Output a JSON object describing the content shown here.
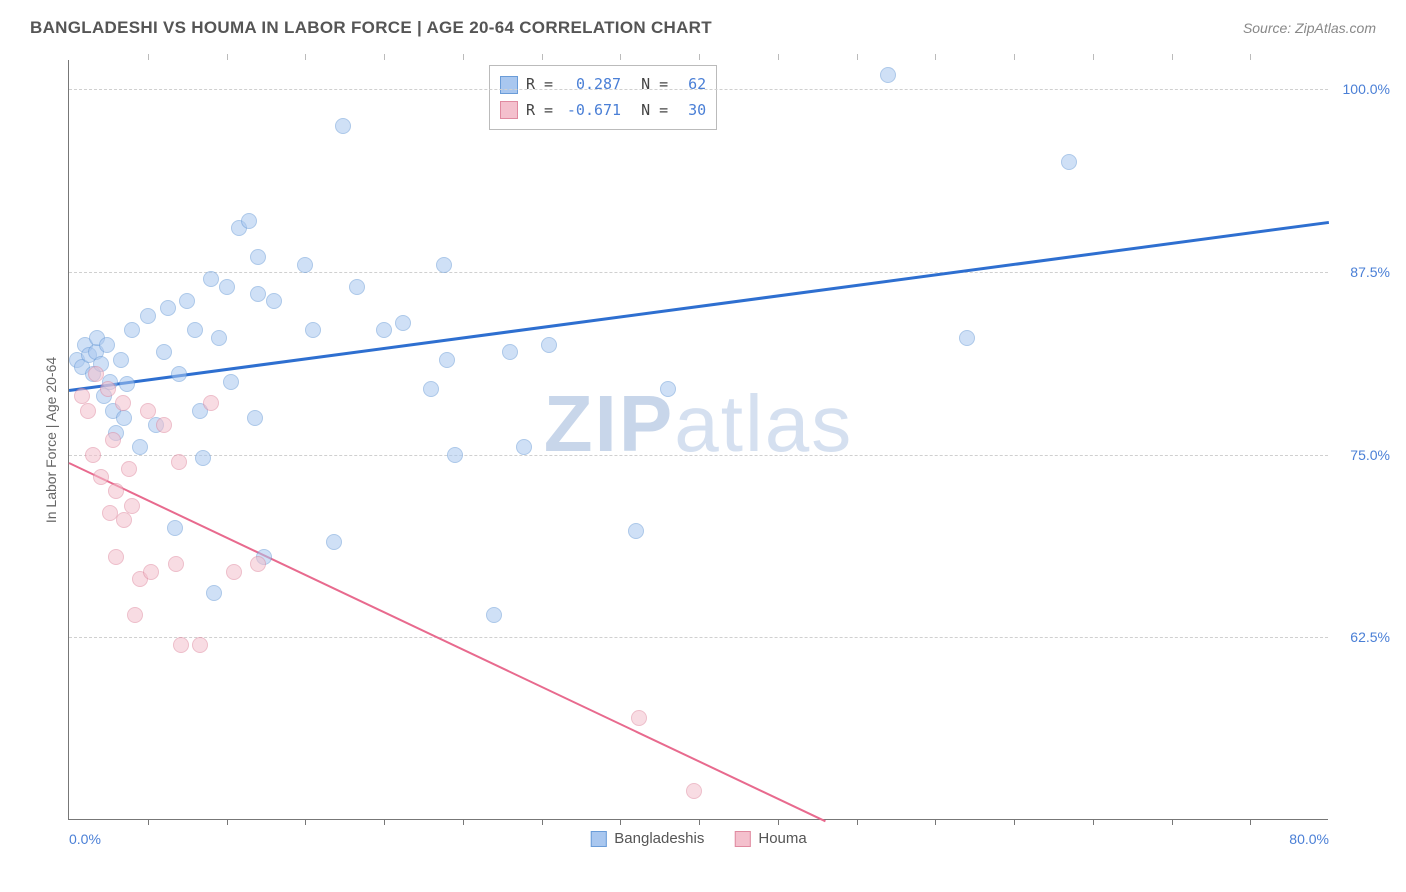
{
  "title": "BANGLADESHI VS HOUMA IN LABOR FORCE | AGE 20-64 CORRELATION CHART",
  "source_label": "Source: ",
  "source_value": "ZipAtlas.com",
  "y_axis_title": "In Labor Force | Age 20-64",
  "watermark_a": "ZIP",
  "watermark_b": "atlas",
  "chart": {
    "type": "scatter",
    "xlim": [
      0,
      80
    ],
    "ylim": [
      50,
      102
    ],
    "x_ticks_major": [
      0,
      80
    ],
    "x_ticks_minor": [
      5,
      10,
      15,
      20,
      25,
      30,
      35,
      40,
      45,
      50,
      55,
      60,
      65,
      70,
      75
    ],
    "y_ticks": [
      62.5,
      75.0,
      87.5,
      100.0
    ],
    "x_tick_labels": [
      "0.0%",
      "80.0%"
    ],
    "y_tick_labels": [
      "62.5%",
      "75.0%",
      "87.5%",
      "100.0%"
    ],
    "grid_color": "#d0d0d0",
    "axis_color": "#777777",
    "tick_label_color": "#4a7fd6",
    "background_color": "#ffffff",
    "marker_radius": 8,
    "marker_opacity": 0.55,
    "series": [
      {
        "name": "Bangladeshis",
        "fill": "#a9c7ef",
        "stroke": "#6a9cd8",
        "trend_color": "#2e6fd0",
        "trend_width": 2.5,
        "r_value": "0.287",
        "n_value": "62",
        "trend": {
          "x1": 0,
          "y1": 79.5,
          "x2": 80,
          "y2": 91.0
        },
        "points": [
          [
            0.5,
            81.5
          ],
          [
            0.8,
            81.0
          ],
          [
            1.0,
            82.5
          ],
          [
            1.3,
            81.8
          ],
          [
            1.5,
            80.5
          ],
          [
            1.7,
            82.0
          ],
          [
            1.8,
            83.0
          ],
          [
            2.0,
            81.2
          ],
          [
            2.2,
            79.0
          ],
          [
            2.4,
            82.5
          ],
          [
            2.6,
            80.0
          ],
          [
            2.8,
            78.0
          ],
          [
            3.0,
            76.5
          ],
          [
            3.3,
            81.5
          ],
          [
            3.5,
            77.5
          ],
          [
            3.7,
            79.8
          ],
          [
            4.0,
            83.5
          ],
          [
            4.5,
            75.5
          ],
          [
            5.0,
            84.5
          ],
          [
            5.5,
            77.0
          ],
          [
            6.0,
            82.0
          ],
          [
            6.3,
            85.0
          ],
          [
            6.7,
            70.0
          ],
          [
            7.0,
            80.5
          ],
          [
            7.5,
            85.5
          ],
          [
            8.0,
            83.5
          ],
          [
            8.3,
            78.0
          ],
          [
            8.5,
            74.8
          ],
          [
            9.0,
            87.0
          ],
          [
            9.2,
            65.5
          ],
          [
            9.5,
            83.0
          ],
          [
            10.0,
            86.5
          ],
          [
            10.3,
            80.0
          ],
          [
            10.8,
            90.5
          ],
          [
            11.4,
            91.0
          ],
          [
            11.8,
            77.5
          ],
          [
            12.0,
            86.0
          ],
          [
            12.0,
            88.5
          ],
          [
            12.4,
            68.0
          ],
          [
            13.0,
            85.5
          ],
          [
            15.0,
            88.0
          ],
          [
            15.5,
            83.5
          ],
          [
            16.8,
            69.0
          ],
          [
            17.4,
            97.5
          ],
          [
            18.3,
            86.5
          ],
          [
            20.0,
            83.5
          ],
          [
            21.2,
            84.0
          ],
          [
            23.0,
            79.5
          ],
          [
            23.8,
            88.0
          ],
          [
            24.0,
            81.5
          ],
          [
            24.5,
            75.0
          ],
          [
            27.0,
            64.0
          ],
          [
            28.0,
            82.0
          ],
          [
            28.9,
            75.5
          ],
          [
            30.5,
            82.5
          ],
          [
            36.0,
            69.8
          ],
          [
            38.0,
            79.5
          ],
          [
            52.0,
            101.0
          ],
          [
            57.0,
            83.0
          ],
          [
            63.5,
            95.0
          ]
        ]
      },
      {
        "name": "Houma",
        "fill": "#f4c0cd",
        "stroke": "#e08aa0",
        "trend_color": "#e86a8e",
        "trend_width": 2,
        "r_value": "-0.671",
        "n_value": "30",
        "trend": {
          "x1": 0,
          "y1": 74.5,
          "x2": 48,
          "y2": 50.0
        },
        "points": [
          [
            0.8,
            79.0
          ],
          [
            1.2,
            78.0
          ],
          [
            1.5,
            75.0
          ],
          [
            1.7,
            80.5
          ],
          [
            2.0,
            73.5
          ],
          [
            2.5,
            79.5
          ],
          [
            2.6,
            71.0
          ],
          [
            2.8,
            76.0
          ],
          [
            3.0,
            68.0
          ],
          [
            3.0,
            72.5
          ],
          [
            3.4,
            78.5
          ],
          [
            3.5,
            70.5
          ],
          [
            3.8,
            74.0
          ],
          [
            4.0,
            71.5
          ],
          [
            4.2,
            64.0
          ],
          [
            4.5,
            66.5
          ],
          [
            5.0,
            78.0
          ],
          [
            5.2,
            67.0
          ],
          [
            6.0,
            77.0
          ],
          [
            6.8,
            67.5
          ],
          [
            7.0,
            74.5
          ],
          [
            7.1,
            62.0
          ],
          [
            8.3,
            62.0
          ],
          [
            9.0,
            78.5
          ],
          [
            10.5,
            67.0
          ],
          [
            12.0,
            67.5
          ],
          [
            36.2,
            57.0
          ],
          [
            39.7,
            52.0
          ]
        ]
      }
    ]
  },
  "legend_corr": {
    "rows": [
      {
        "swatch_fill": "#a9c7ef",
        "swatch_stroke": "#6a9cd8",
        "r_label": "R =",
        "r_val": "0.287",
        "n_label": "N =",
        "n_val": "62"
      },
      {
        "swatch_fill": "#f4c0cd",
        "swatch_stroke": "#e08aa0",
        "r_label": "R =",
        "r_val": "-0.671",
        "n_label": "N =",
        "n_val": "30"
      }
    ]
  },
  "legend_bottom": [
    {
      "swatch_fill": "#a9c7ef",
      "swatch_stroke": "#6a9cd8",
      "label": "Bangladeshis"
    },
    {
      "swatch_fill": "#f4c0cd",
      "swatch_stroke": "#e08aa0",
      "label": "Houma"
    }
  ]
}
